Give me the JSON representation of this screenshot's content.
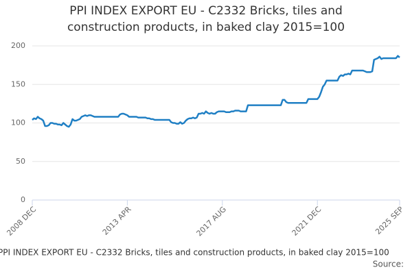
{
  "chart_data": {
    "type": "line",
    "title": "PPI INDEX EXPORT EU - C2332 Bricks, tiles and construction products, in baked clay 2015=100",
    "footer": "PPI INDEX EXPORT EU - C2332 Bricks, tiles and construction products, in baked clay 2015=100",
    "source": "Source:",
    "color": "#1f7fc4",
    "grid": true,
    "ylim": [
      0,
      200
    ],
    "yticks": [
      0,
      50,
      100,
      150,
      200
    ],
    "categories": [
      "2008 DEC",
      null,
      null,
      null,
      null,
      null,
      null,
      null,
      null,
      null,
      null,
      null,
      null,
      null,
      null,
      null,
      null,
      null,
      null,
      null,
      null,
      null,
      null,
      null,
      null,
      null,
      null,
      null,
      null,
      null,
      null,
      null,
      null,
      null,
      null,
      null,
      null,
      null,
      null,
      null,
      null,
      null,
      null,
      null,
      null,
      null,
      null,
      null,
      null,
      null,
      null,
      null,
      "2013 APR",
      null,
      null,
      null,
      null,
      null,
      null,
      null,
      null,
      null,
      null,
      null,
      null,
      null,
      null,
      null,
      null,
      null,
      null,
      null,
      null,
      null,
      null,
      null,
      null,
      null,
      null,
      null,
      null,
      null,
      null,
      null,
      null,
      null,
      null,
      null,
      null,
      null,
      null,
      null,
      null,
      null,
      null,
      null,
      null,
      null,
      null,
      null,
      null,
      null,
      null,
      null,
      "2017 AUG",
      null,
      null,
      null,
      null,
      null,
      null,
      null,
      null,
      null,
      null,
      null,
      null,
      null,
      null,
      null,
      null,
      null,
      null,
      null,
      null,
      null,
      null,
      null,
      null,
      null,
      null,
      null,
      null,
      null,
      null,
      null,
      null,
      null,
      null,
      null,
      null,
      null,
      null,
      null,
      null,
      null,
      null,
      null,
      null,
      null,
      null,
      null,
      null,
      null,
      null,
      null,
      "2021 DEC",
      null,
      null,
      null,
      null,
      null,
      null,
      null,
      null,
      null,
      null,
      null,
      null,
      null,
      null,
      null,
      null,
      null,
      null,
      null,
      null,
      null,
      null,
      null,
      null,
      null,
      null,
      null,
      null,
      null,
      null,
      null,
      null,
      null,
      null,
      null,
      null,
      null,
      null,
      null,
      null,
      null,
      null,
      null,
      null,
      "2025 SEP"
    ],
    "values": [
      104,
      106,
      105,
      108,
      106,
      105,
      103,
      96,
      96,
      97,
      100,
      100,
      99,
      99,
      98,
      98,
      97,
      100,
      98,
      96,
      95,
      98,
      105,
      103,
      103,
      104,
      105,
      108,
      109,
      110,
      109,
      110,
      110,
      109,
      108,
      108,
      108,
      108,
      108,
      108,
      108,
      108,
      108,
      108,
      108,
      108,
      108,
      108,
      111,
      112,
      112,
      111,
      110,
      108,
      108,
      108,
      108,
      108,
      107,
      107,
      107,
      107,
      107,
      106,
      106,
      105,
      105,
      104,
      104,
      104,
      104,
      104,
      104,
      104,
      104,
      104,
      101,
      100,
      100,
      99,
      99,
      101,
      99,
      100,
      103,
      105,
      106,
      106,
      107,
      106,
      107,
      112,
      112,
      113,
      112,
      115,
      113,
      112,
      113,
      112,
      112,
      114,
      115,
      115,
      115,
      115,
      114,
      114,
      114,
      115,
      115,
      116,
      116,
      116,
      115,
      115,
      115,
      115,
      123,
      123,
      123,
      123,
      123,
      123,
      123,
      123,
      123,
      123,
      123,
      123,
      123,
      123,
      123,
      123,
      123,
      123,
      123,
      130,
      130,
      127,
      126,
      126,
      126,
      126,
      126,
      126,
      126,
      126,
      126,
      126,
      126,
      131,
      131,
      131,
      131,
      131,
      131,
      134,
      140,
      147,
      150,
      155,
      155,
      155,
      155,
      155,
      155,
      155,
      160,
      162,
      161,
      163,
      163,
      164,
      163,
      168,
      168,
      168,
      168,
      168,
      168,
      168,
      167,
      166,
      166,
      166,
      167,
      182,
      183,
      184,
      186,
      183,
      184,
      184,
      184,
      184,
      184,
      184,
      184,
      184,
      187,
      185
    ]
  }
}
